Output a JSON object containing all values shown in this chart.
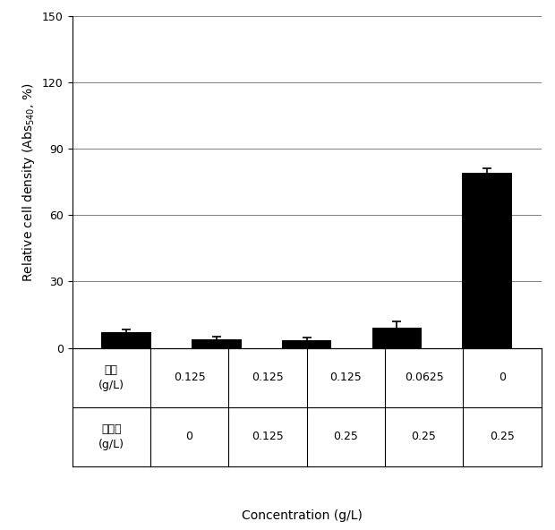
{
  "bar_values": [
    7.0,
    4.0,
    3.5,
    9.0,
    79.0
  ],
  "bar_errors": [
    1.5,
    1.2,
    1.0,
    2.8,
    2.2
  ],
  "bar_color": "#000000",
  "bar_width": 0.55,
  "ylim": [
    0,
    150
  ],
  "yticks": [
    0,
    30,
    60,
    90,
    120,
    150
  ],
  "xlabel": "Concentration (g/L)",
  "n_bars": 5,
  "background_color": "#ffffff",
  "ylabel_fontsize": 10,
  "xlabel_fontsize": 10,
  "tick_fontsize": 9,
  "table_fontsize": 9,
  "table_row1_label": "계지\n(g/L)",
  "table_row2_label": "석창포\n(g/L)",
  "table_row1_values": [
    "0.125",
    "0.125",
    "0.125",
    "0.0625",
    "0"
  ],
  "table_row2_values": [
    "0",
    "0.125",
    "0.25",
    "0.25",
    "0.25"
  ]
}
